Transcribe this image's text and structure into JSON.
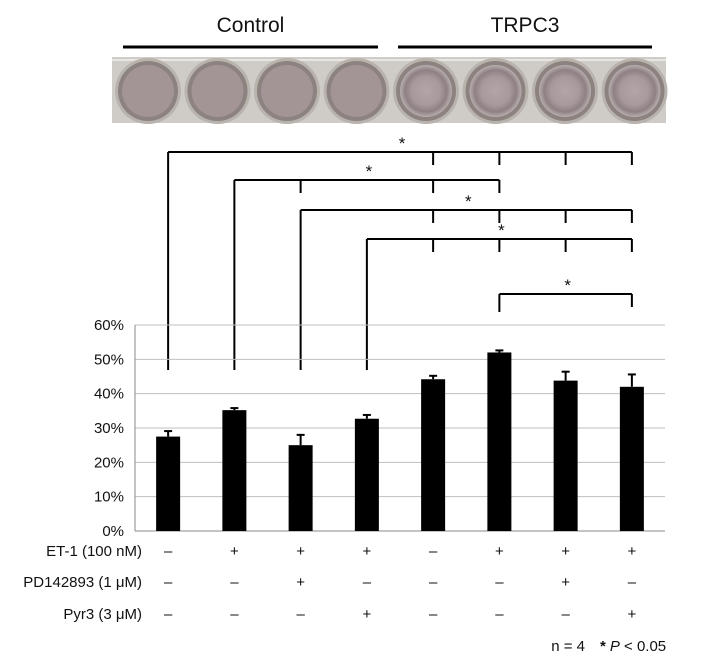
{
  "groups": [
    {
      "label": "Control",
      "bars": [
        0,
        1,
        2,
        3
      ]
    },
    {
      "label": "TRPC3",
      "bars": [
        4,
        5,
        6,
        7
      ]
    }
  ],
  "plate_photo": {
    "plate_color": "#cfcbc6",
    "well_rim_color": "#8c827f",
    "control_well_color": "#a39496",
    "trpc3_well_center_color": "#b4a5a8"
  },
  "chart_data": {
    "type": "bar",
    "categories": [
      "1",
      "2",
      "3",
      "4",
      "5",
      "6",
      "7",
      "8"
    ],
    "values": [
      27.5,
      35.2,
      25.0,
      32.7,
      44.2,
      52.0,
      43.8,
      42.0
    ],
    "errors": [
      1.6,
      0.6,
      3.0,
      1.1,
      1.0,
      0.6,
      2.6,
      3.6
    ],
    "ylim": [
      0,
      60
    ],
    "yticks": [
      0,
      10,
      20,
      30,
      40,
      50,
      60
    ],
    "ytick_labels": [
      "0%",
      "10%",
      "20%",
      "30%",
      "40%",
      "50%",
      "60%"
    ],
    "grid": true,
    "bar_color": "#000000",
    "grid_color": "#bfbfbf",
    "significance": [
      {
        "from": 0,
        "to": [
          4,
          5,
          6,
          7
        ],
        "label": "*"
      },
      {
        "from": 1,
        "to": [
          2,
          4,
          5
        ],
        "label": "*"
      },
      {
        "from": 2,
        "to": [
          4,
          5,
          6,
          7
        ],
        "label": "*"
      },
      {
        "from": 3,
        "to": [
          4,
          5,
          6,
          7
        ],
        "label": "*"
      },
      {
        "from": 5,
        "to": [
          7
        ],
        "label": "*"
      }
    ]
  },
  "conditions": [
    {
      "label": "ET-1 (100 nM)",
      "values": [
        "–",
        "+",
        "+",
        "+",
        "–",
        "+",
        "+",
        "+"
      ]
    },
    {
      "label": "PD142893 (1 μM)",
      "values": [
        "–",
        "–",
        "+",
        "–",
        "–",
        "–",
        "+",
        "–"
      ]
    },
    {
      "label": "Pyr3 (3 μM)",
      "values": [
        "–",
        "–",
        "–",
        "+",
        "–",
        "–",
        "–",
        "+"
      ]
    }
  ],
  "footnote": {
    "n": "n = 4",
    "star": "*",
    "p_letter": "P",
    "p_rest": " < 0.05"
  }
}
